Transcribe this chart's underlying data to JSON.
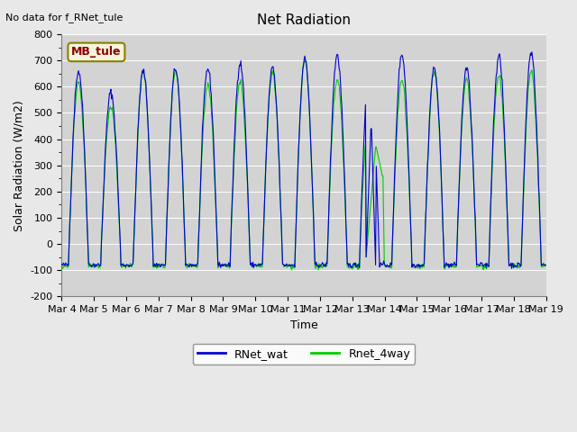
{
  "title": "Net Radiation",
  "xlabel": "Time",
  "ylabel": "Solar Radiation (W/m2)",
  "top_label": "No data for f_RNet_tule",
  "station_label": "MB_tule",
  "ylim": [
    -200,
    800
  ],
  "yticks": [
    -200,
    -100,
    0,
    100,
    200,
    300,
    400,
    500,
    600,
    700,
    800
  ],
  "line1_label": "RNet_wat",
  "line1_color": "#0000cd",
  "line2_label": "Rnet_4way",
  "line2_color": "#00cc00",
  "background_color": "#e8e8e8",
  "plot_bg_color": "#d3d3d3",
  "n_days": 16,
  "start_day": 4
}
